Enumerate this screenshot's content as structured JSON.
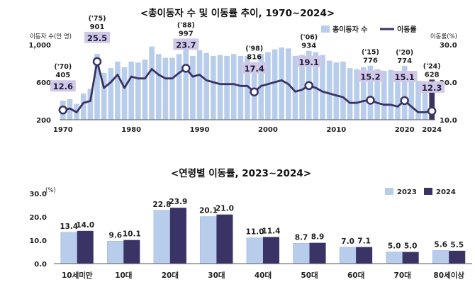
{
  "chart_data": [
    {
      "type": "bar+line",
      "title": "<총이동자 수 및 이동률 추이, 1970~2024>",
      "y_left_label": "이동자 수(만 명)",
      "y_right_label": "이동률(%)",
      "y_left_ticks": [
        "1,000",
        "600",
        "200"
      ],
      "y_right_ticks": [
        "30.0",
        "20.0",
        "10.0"
      ],
      "y_left_range": [
        200,
        1000
      ],
      "y_right_range": [
        10,
        30
      ],
      "x_ticks": [
        "1970",
        "1980",
        "1990",
        "2000",
        "2010",
        "2020",
        "2024"
      ],
      "legend": {
        "bar": "총이동자 수",
        "line": "이동률"
      },
      "years": [
        1970,
        1971,
        1972,
        1973,
        1974,
        1975,
        1976,
        1977,
        1978,
        1979,
        1980,
        1981,
        1982,
        1983,
        1984,
        1985,
        1986,
        1987,
        1988,
        1989,
        1990,
        1991,
        1992,
        1993,
        1994,
        1995,
        1996,
        1997,
        1998,
        1999,
        2000,
        2001,
        2002,
        2003,
        2004,
        2005,
        2006,
        2007,
        2008,
        2009,
        2010,
        2011,
        2012,
        2013,
        2014,
        2015,
        2016,
        2017,
        2018,
        2019,
        2020,
        2021,
        2022,
        2023,
        2024
      ],
      "movers": [
        405,
        420,
        370,
        480,
        530,
        901,
        700,
        750,
        820,
        760,
        820,
        810,
        840,
        980,
        900,
        860,
        860,
        900,
        997,
        880,
        940,
        910,
        880,
        890,
        880,
        900,
        880,
        880,
        816,
        900,
        920,
        950,
        970,
        960,
        880,
        890,
        934,
        920,
        890,
        830,
        810,
        820,
        750,
        740,
        760,
        776,
        740,
        720,
        730,
        710,
        774,
        720,
        615,
        610,
        628
      ],
      "rate": [
        12.6,
        13.0,
        12.0,
        14.5,
        15.0,
        25.5,
        18.5,
        20.0,
        22.0,
        18.5,
        21.5,
        21.0,
        21.0,
        23.5,
        22.0,
        21.0,
        21.0,
        22.5,
        23.7,
        21.5,
        22.0,
        20.5,
        20.0,
        19.5,
        19.5,
        19.5,
        19.0,
        19.0,
        17.4,
        19.0,
        19.5,
        20.0,
        20.5,
        19.5,
        17.5,
        18.0,
        19.1,
        18.5,
        17.5,
        17.0,
        16.5,
        16.0,
        14.5,
        14.5,
        15.0,
        15.2,
        14.5,
        14.0,
        14.0,
        13.5,
        15.1,
        13.5,
        12.0,
        12.0,
        12.3
      ],
      "annotations": {
        "movers": [
          {
            "year": 1970,
            "yr": "('70)",
            "value": "405"
          },
          {
            "year": 1975,
            "yr": "('75)",
            "value": "901"
          },
          {
            "year": 1988,
            "yr": "('88)",
            "value": "997"
          },
          {
            "year": 1998,
            "yr": "('98)",
            "value": "816"
          },
          {
            "year": 2006,
            "yr": "('06)",
            "value": "934"
          },
          {
            "year": 2015,
            "yr": "('15)",
            "value": "776"
          },
          {
            "year": 2020,
            "yr": "('20)",
            "value": "774"
          },
          {
            "year": 2024,
            "yr": "('24)",
            "value": "628"
          }
        ],
        "rate": [
          {
            "year": 1970,
            "value": "12.6"
          },
          {
            "year": 1975,
            "value": "25.5"
          },
          {
            "year": 1988,
            "value": "23.7"
          },
          {
            "year": 1998,
            "value": "17.4"
          },
          {
            "year": 2006,
            "value": "19.1"
          },
          {
            "year": 2015,
            "value": "15.2"
          },
          {
            "year": 2020,
            "value": "15.1"
          },
          {
            "year": 2024,
            "value": "12.3"
          }
        ]
      },
      "colors": {
        "bars": "#b8cdec",
        "bar_2024": "#3a3366",
        "line": "#3a3366",
        "box": "#cfc9e6"
      }
    },
    {
      "type": "bar",
      "title": "<연령별 이동률, 2023~2024>",
      "unit": "(%)",
      "y_ticks": [
        "30.0",
        "20.0",
        "10.0",
        "0.0"
      ],
      "ylim": [
        0,
        30
      ],
      "categories": [
        "10세미만",
        "10대",
        "20대",
        "30대",
        "40대",
        "50대",
        "60대",
        "70대",
        "80세이상"
      ],
      "series": [
        {
          "name": "2023",
          "values": [
            13.4,
            9.6,
            22.8,
            20.1,
            11.0,
            8.7,
            7.0,
            5.0,
            5.6
          ],
          "labels": [
            "13.4",
            "9.6",
            "22.8",
            "20.1",
            "11.0",
            "8.7",
            "7.0",
            "5.0",
            "5.6"
          ]
        },
        {
          "name": "2024",
          "values": [
            14.0,
            10.1,
            23.9,
            21.0,
            11.4,
            8.9,
            7.1,
            5.0,
            5.5
          ],
          "labels": [
            "14.0",
            "10.1",
            "23.9",
            "21.0",
            "11.4",
            "8.9",
            "7.1",
            "5.0",
            "5.5"
          ]
        }
      ],
      "colors": {
        "2023": "#b8cdec",
        "2024": "#3a3366"
      }
    }
  ]
}
